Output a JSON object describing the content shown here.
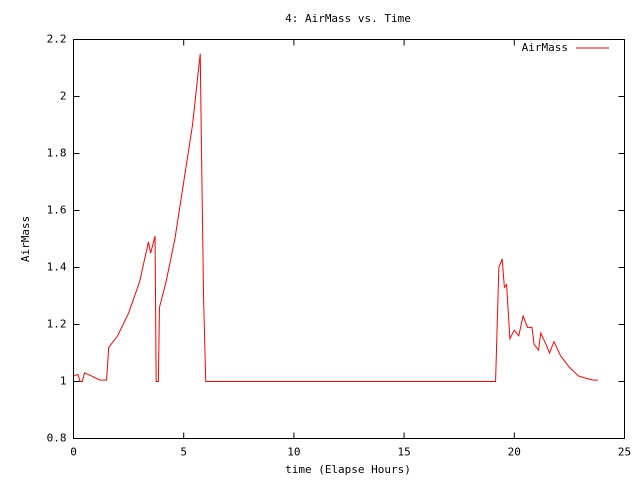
{
  "chart_data": {
    "type": "line",
    "title": "4: AirMass vs. Time",
    "x_label": "time (Elapse Hours)",
    "y_label": "AirMass",
    "x": [
      0,
      0.2,
      0.3,
      0.4,
      0.5,
      0.8,
      1.2,
      1.5,
      1.6,
      2.0,
      2.5,
      3.0,
      3.4,
      3.5,
      3.7,
      3.75,
      3.85,
      3.9,
      4.2,
      4.6,
      5.0,
      5.4,
      5.75,
      5.8,
      5.9,
      6.0,
      19.15,
      19.3,
      19.45,
      19.55,
      19.65,
      19.8,
      20.0,
      20.2,
      20.4,
      20.6,
      20.8,
      20.9,
      21.1,
      21.2,
      21.5,
      21.6,
      21.8,
      22.1,
      22.5,
      22.9,
      23.3,
      23.6,
      23.8
    ],
    "series": [
      {
        "name": "AirMass",
        "color": "#ff0000",
        "values": [
          1.02,
          1.025,
          1.0,
          1.0,
          1.03,
          1.02,
          1.005,
          1.005,
          1.12,
          1.16,
          1.24,
          1.35,
          1.49,
          1.45,
          1.51,
          1.0,
          1.0,
          1.26,
          1.35,
          1.5,
          1.7,
          1.9,
          2.15,
          1.85,
          1.3,
          1.0,
          1.0,
          1.4,
          1.43,
          1.33,
          1.34,
          1.15,
          1.18,
          1.16,
          1.23,
          1.19,
          1.19,
          1.13,
          1.11,
          1.17,
          1.12,
          1.1,
          1.14,
          1.09,
          1.05,
          1.02,
          1.01,
          1.005,
          1.005
        ]
      }
    ],
    "xlim": [
      0,
      25
    ],
    "xticks": [
      0,
      5,
      10,
      15,
      20,
      25
    ],
    "ylim": [
      0.8,
      2.2
    ],
    "yticks": [
      0.8,
      1,
      1.2,
      1.4,
      1.6,
      1.8,
      2,
      2.2
    ],
    "legend": "top-right",
    "grid": false
  }
}
